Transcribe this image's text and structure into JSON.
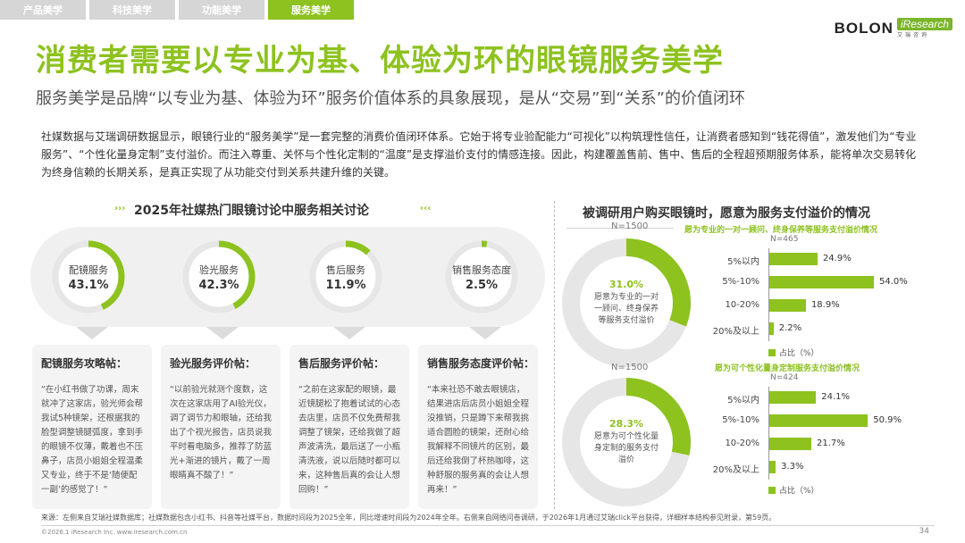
{
  "tabs": [
    {
      "label": "产品美学",
      "active": false
    },
    {
      "label": "科技美学",
      "active": false
    },
    {
      "label": "功能美学",
      "active": false
    },
    {
      "label": "服务美学",
      "active": true
    }
  ],
  "logo": {
    "brand": "BOLON",
    "partner": "iResearch",
    "partner_sub": "艾瑞咨询"
  },
  "title": "消费者需要以专业为基、体验为环的眼镜服务美学",
  "subtitle": "服务美学是品牌“以专业为基、体验为环”服务价值体系的具象展现，是从“交易”到“关系”的价值闭环",
  "description": "社媒数据与艾瑞调研数据显示，眼镜行业的“服务美学”是一套完整的消费价值闭环体系。它始于将专业验配能力“可视化”以构筑理性信任，让消费者感知到“钱花得值”，激发他们为“专业服务”、“个性化量身定制”支付溢价。而注入尊重、关怀与个性化定制的“温度”是支撑溢价支付的情感连接。因此，构建覆盖售前、售中、售后的全程超预期服务体系，能将单次交易转化为终身信赖的长期关系，是真正实现了从功能交付到关系共建升维的关键。",
  "left_section": {
    "title": "2025年社媒热门眼镜讨论中服务相关讨论",
    "stats": [
      {
        "label": "配镜服务",
        "value": "43.1%",
        "pct": 43.1
      },
      {
        "label": "验光服务",
        "value": "42.3%",
        "pct": 42.3
      },
      {
        "label": "售后服务",
        "value": "11.9%",
        "pct": 11.9
      },
      {
        "label": "销售服务态度",
        "value": "2.5%",
        "pct": 2.5
      }
    ],
    "cards": [
      {
        "title": "配镜服务攻略帖：",
        "text": "“在小红书做了功课，周末就冲了这家店，验光师会帮我试5种镜架，还根据我的脸型调整镜腿弧度，拿到手的眼镜不仅薄，戴着也不压鼻子，店员小姐姐全程温柔又专业，终于不是‘随便配一副’的感觉了！”"
      },
      {
        "title": "验光服务评价帖：",
        "text": "“以前验光就测个度数，这次在这家店用了AI验光仪，调了调节力和眼轴，还给我出了个视光报告，店员说我平时看电脑多，推荐了防蓝光+渐进的镜片，戴了一周眼睛真不酸了！”"
      },
      {
        "title": "售后服务评价帖：",
        "text": "“之前在这家配的眼镜，最近镜腿松了抱着试试的心态去店里，店员不仅免费帮我调整了镜架，还给我做了超声波清洗，最后送了一小瓶清洗液，说以后随时都可以来，这种售后真的会让人想回购！”"
      },
      {
        "title": "销售服务态度评价帖：",
        "text": "“本来社恐不敢去眼镜店，结果进店后店员小姐姐全程没推销，只是蹲下来帮我挑适合圆脸的镜架，还耐心给我解释不同镜片的区别，最后还给我倒了杯热咖啡，这种舒服的服务真的会让人想再来！”"
      }
    ]
  },
  "right_section": {
    "title": "被调研用户购买眼镜时，愿意为服务支付溢价的情况",
    "legend_label": "占比（%）",
    "panels": [
      {
        "n_total": "N=1500",
        "donut_value": "31.0%",
        "donut_pct": 31.0,
        "donut_desc": "愿意为专业的一对一顾问、终身保养等服务支付溢价",
        "bar_title": "愿为专业的一对一顾问、终身保养等服务支付溢价情况",
        "n_sub": "N=465",
        "bars": [
          {
            "label": "5%以内",
            "value": 24.9,
            "text": "24.9%"
          },
          {
            "label": "5%-10%",
            "value": 54.0,
            "text": "54.0%"
          },
          {
            "label": "10-20%",
            "value": 18.9,
            "text": "18.9%"
          },
          {
            "label": "20%及以上",
            "value": 2.2,
            "text": "2.2%"
          }
        ]
      },
      {
        "n_total": "N=1500",
        "donut_value": "28.3%",
        "donut_pct": 28.3,
        "donut_desc": "愿意为可个性化量身定制的服务支付溢价",
        "bar_title": "愿为可个性化量身定制服务支付溢价情况",
        "n_sub": "N=424",
        "bars": [
          {
            "label": "5%以内",
            "value": 24.1,
            "text": "24.1%"
          },
          {
            "label": "5%-10%",
            "value": 50.9,
            "text": "50.9%"
          },
          {
            "label": "10-20%",
            "value": 21.7,
            "text": "21.7%"
          },
          {
            "label": "20%及以上",
            "value": 3.3,
            "text": "3.3%"
          }
        ]
      }
    ]
  },
  "colors": {
    "accent": "#8dc21f",
    "ring_bg": "#e6e6e6"
  },
  "source": "来源：左侧来自艾瑞社媒数据库；社媒数据包含小红书、抖音等社媒平台，数据时间段为2025全年，同比增速时间段为2024年全年。右侧来自网络问卷调研，于2026年1月通过艾瑞click平台获得，详细样本结构参见附录，第59页。",
  "copyright": "©2026.1 iResearch Inc.                    www.iresearch.com.cn",
  "page_number": "34"
}
